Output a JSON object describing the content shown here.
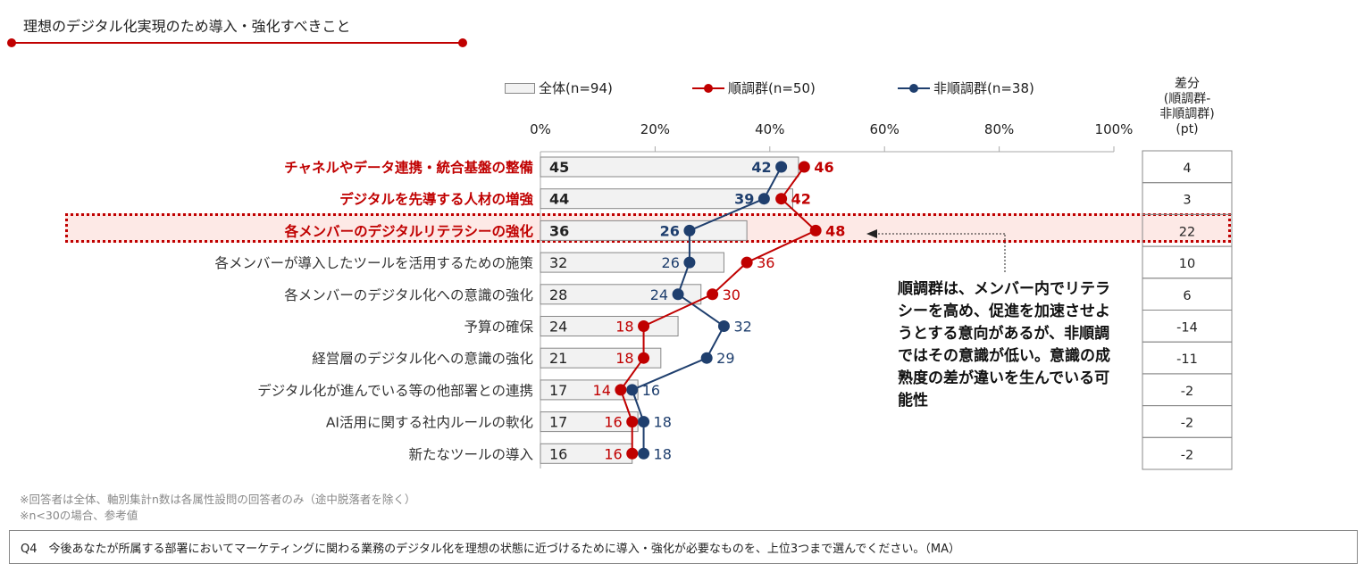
{
  "title": "理想のデジタル化実現のため導入・強化すべきこと",
  "colors": {
    "accent": "#c00000",
    "blue": "#1f3f6e",
    "bar": "#f2f2f2"
  },
  "chart_data": {
    "type": "bar+line",
    "categories": [
      "チャネルやデータ連携・統合基盤の整備",
      "デジタルを先導する人材の増強",
      "各メンバーのデジタルリテラシーの強化",
      "各メンバーが導入したツールを活用するための施策",
      "各メンバーのデジタル化への意識の強化",
      "予算の確保",
      "経営層のデジタル化への意識の強化",
      "デジタル化が進んでいる等の他部署との連携",
      "AI活用に関する社内ルールの軟化",
      "新たなツールの導入"
    ],
    "series": [
      {
        "name": "全体(n=94)",
        "type": "bar",
        "values": [
          45,
          44,
          36,
          32,
          28,
          24,
          21,
          17,
          17,
          16
        ]
      },
      {
        "name": "順調群(n=50)",
        "type": "line",
        "color": "#c00000",
        "values": [
          46,
          42,
          48,
          36,
          30,
          18,
          18,
          14,
          16,
          16
        ]
      },
      {
        "name": "非順調群(n=38)",
        "type": "line",
        "color": "#1f3f6e",
        "values": [
          42,
          39,
          26,
          26,
          24,
          32,
          29,
          16,
          18,
          18
        ]
      }
    ],
    "xticks": [
      "0%",
      "20%",
      "40%",
      "60%",
      "80%",
      "100%"
    ],
    "xlim": [
      0,
      100
    ],
    "highlighted_categories": [
      0,
      1,
      2
    ],
    "boxed_category": 2,
    "diff_header": [
      "差分",
      "(順調群-",
      "非順調群)",
      "(pt)"
    ],
    "diff": [
      "4",
      "3",
      "22",
      "10",
      "6",
      "-14",
      "-11",
      "-2",
      "-2",
      "-2"
    ],
    "annotation": "順調群は、メンバー内でリテラシーを高め、促進を加速させようとする意向があるが、非順調ではその意識が低い。意識の成熟度の差が違いを生んでいる可能性"
  },
  "footnotes": [
    "※回答者は全体、軸別集計n数は各属性設問の回答者のみ（途中脱落者を除く）",
    "※n<30の場合、参考値"
  ],
  "question": "Q4　今後あなたが所属する部署においてマーケティングに関わる業務のデジタル化を理想の状態に近づけるために導入・強化が必要なものを、上位3つまで選んでください。（MA）"
}
